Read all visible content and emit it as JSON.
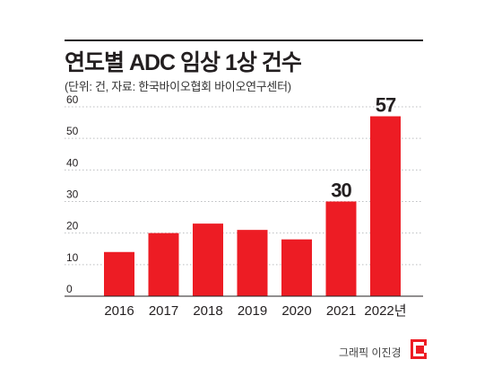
{
  "header": {
    "title": "연도별 ADC 임상 1상 건수",
    "subtitle": "(단위: 건, 자료: 한국바이오협회 바이오연구센터)"
  },
  "chart_data": {
    "type": "bar",
    "categories": [
      "2016",
      "2017",
      "2018",
      "2019",
      "2020",
      "2021",
      "2022년"
    ],
    "values": [
      14,
      20,
      23,
      21,
      18,
      30,
      57
    ],
    "value_labels": [
      "",
      "",
      "",
      "",
      "",
      "30",
      "57"
    ],
    "yticks": [
      "0",
      "10",
      "20",
      "30",
      "40",
      "50",
      "60"
    ],
    "ylim": [
      0,
      60
    ],
    "grid": true,
    "bar_color": "#ed1c24"
  },
  "footer": {
    "credit": "그래픽 이진경"
  }
}
